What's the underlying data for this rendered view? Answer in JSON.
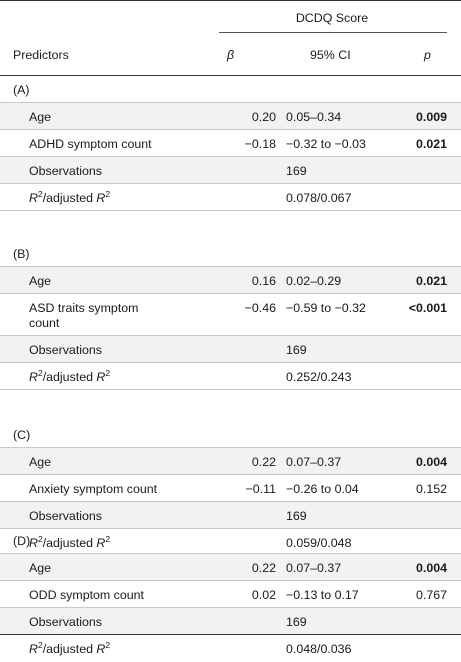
{
  "header": {
    "group_label": "DCDQ Score",
    "predictors_label": "Predictors",
    "beta_label": "β",
    "ci_label": "95% CI",
    "p_label": "p"
  },
  "sections": [
    {
      "label": "(A)",
      "rows": [
        {
          "predictor": "Age",
          "beta": "0.20",
          "ci": "0.05–0.34",
          "p": "0.009",
          "p_bold": true
        },
        {
          "predictor": "ADHD symptom count",
          "beta": "−0.18",
          "ci": "−0.32 to −0.03",
          "p": "0.021",
          "p_bold": true
        },
        {
          "predictor": "Observations",
          "beta": "",
          "ci": "169",
          "p": ""
        },
        {
          "predictor_r2": true,
          "r": "R",
          "sup": "2",
          "mid": "/adjusted ",
          "r2": "R",
          "sup2": "2",
          "beta": "",
          "ci": "0.078/0.067",
          "p": ""
        }
      ]
    },
    {
      "label": "(B)",
      "rows": [
        {
          "predictor": "Age",
          "beta": "0.16",
          "ci": "0.02–0.29",
          "p": "0.021",
          "p_bold": true
        },
        {
          "predictor": "ASD traits symptom",
          "predictor_line2": "count",
          "beta": "−0.46",
          "ci": "−0.59 to −0.32",
          "p": "<0.001",
          "p_bold": true
        },
        {
          "predictor": "Observations",
          "beta": "",
          "ci": "169",
          "p": ""
        },
        {
          "predictor_r2": true,
          "r": "R",
          "sup": "2",
          "mid": "/adjusted ",
          "r2": "R",
          "sup2": "2",
          "beta": "",
          "ci": "0.252/0.243",
          "p": ""
        }
      ]
    },
    {
      "label": "(C)",
      "rows": [
        {
          "predictor": "Age",
          "beta": "0.22",
          "ci": "0.07–0.37",
          "p": "0.004",
          "p_bold": true
        },
        {
          "predictor": "Anxiety symptom count",
          "beta": "−0.11",
          "ci": "−0.26 to 0.04",
          "p": "0.152",
          "p_bold": false
        },
        {
          "predictor": "Observations",
          "beta": "",
          "ci": "169",
          "p": ""
        },
        {
          "predictor_r2": true,
          "r": "R",
          "sup": "2",
          "mid": "/adjusted ",
          "r2": "R",
          "sup2": "2",
          "beta": "",
          "ci": "0.059/0.048",
          "p": ""
        }
      ]
    },
    {
      "label": "(D)",
      "rows": [
        {
          "predictor": "Age",
          "beta": "0.22",
          "ci": "0.07–0.37",
          "p": "0.004",
          "p_bold": true
        },
        {
          "predictor": "ODD symptom count",
          "beta": "0.02",
          "ci": "−0.13 to 0.17",
          "p": "0.767",
          "p_bold": false
        },
        {
          "predictor": "Observations",
          "beta": "",
          "ci": "169",
          "p": ""
        },
        {
          "predictor_r2": true,
          "r": "R",
          "sup": "2",
          "mid": "/adjusted ",
          "r2": "R",
          "sup2": "2",
          "beta": "",
          "ci": "0.048/0.036",
          "p": ""
        }
      ]
    }
  ]
}
